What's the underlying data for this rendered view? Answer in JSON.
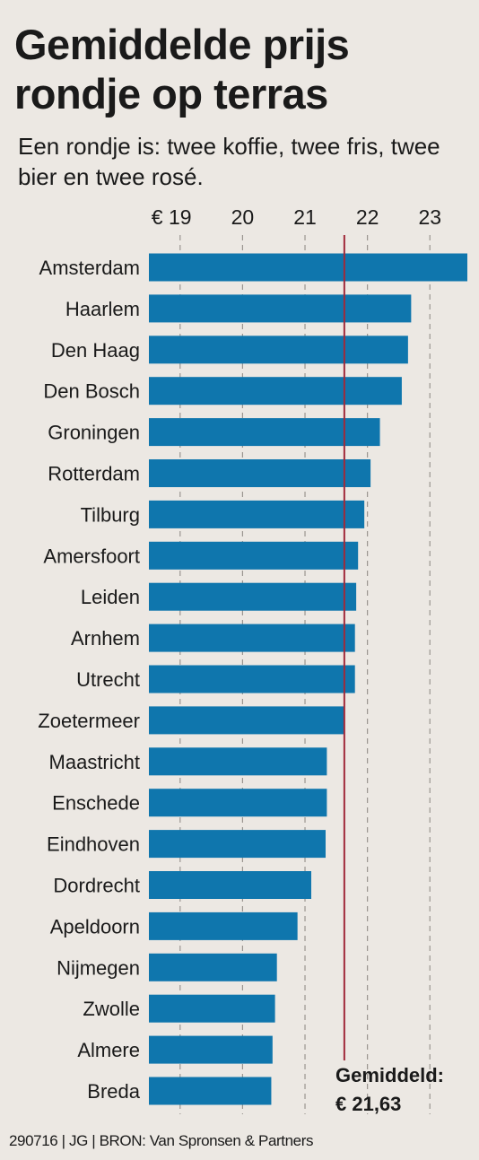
{
  "title": "Gemiddelde prijs rondje op terras",
  "subtitle": "Een rondje is: twee koffie, twee fris, twee bier en twee rosé.",
  "footer": "290716 | JG | BRON: Van Spronsen & Partners",
  "colors": {
    "bar": "#0f76ad",
    "average_line": "#a02a3a",
    "gridline": "#9a9590",
    "background": "#ece8e3"
  },
  "chart_data": {
    "type": "bar",
    "orientation": "horizontal",
    "categories": [
      "Amsterdam",
      "Haarlem",
      "Den Haag",
      "Den Bosch",
      "Groningen",
      "Rotterdam",
      "Tilburg",
      "Amersfoort",
      "Leiden",
      "Arnhem",
      "Utrecht",
      "Zoetermeer",
      "Maastricht",
      "Enschede",
      "Eindhoven",
      "Dordrecht",
      "Apeldoorn",
      "Nijmegen",
      "Zwolle",
      "Almere",
      "Breda"
    ],
    "values": [
      23.6,
      22.7,
      22.65,
      22.55,
      22.2,
      22.05,
      21.95,
      21.85,
      21.82,
      21.8,
      21.8,
      21.63,
      21.35,
      21.35,
      21.33,
      21.1,
      20.88,
      20.55,
      20.52,
      20.48,
      20.46
    ],
    "xlim": [
      18.5,
      23.6
    ],
    "xticks": [
      19,
      20,
      21,
      22,
      23
    ],
    "tick_labels": [
      "€ 19",
      "20",
      "21",
      "22",
      "23"
    ],
    "grid": true,
    "average": {
      "value": 21.63,
      "label_line1": "Gemiddeld:",
      "label_line2": "€ 21,63"
    }
  }
}
